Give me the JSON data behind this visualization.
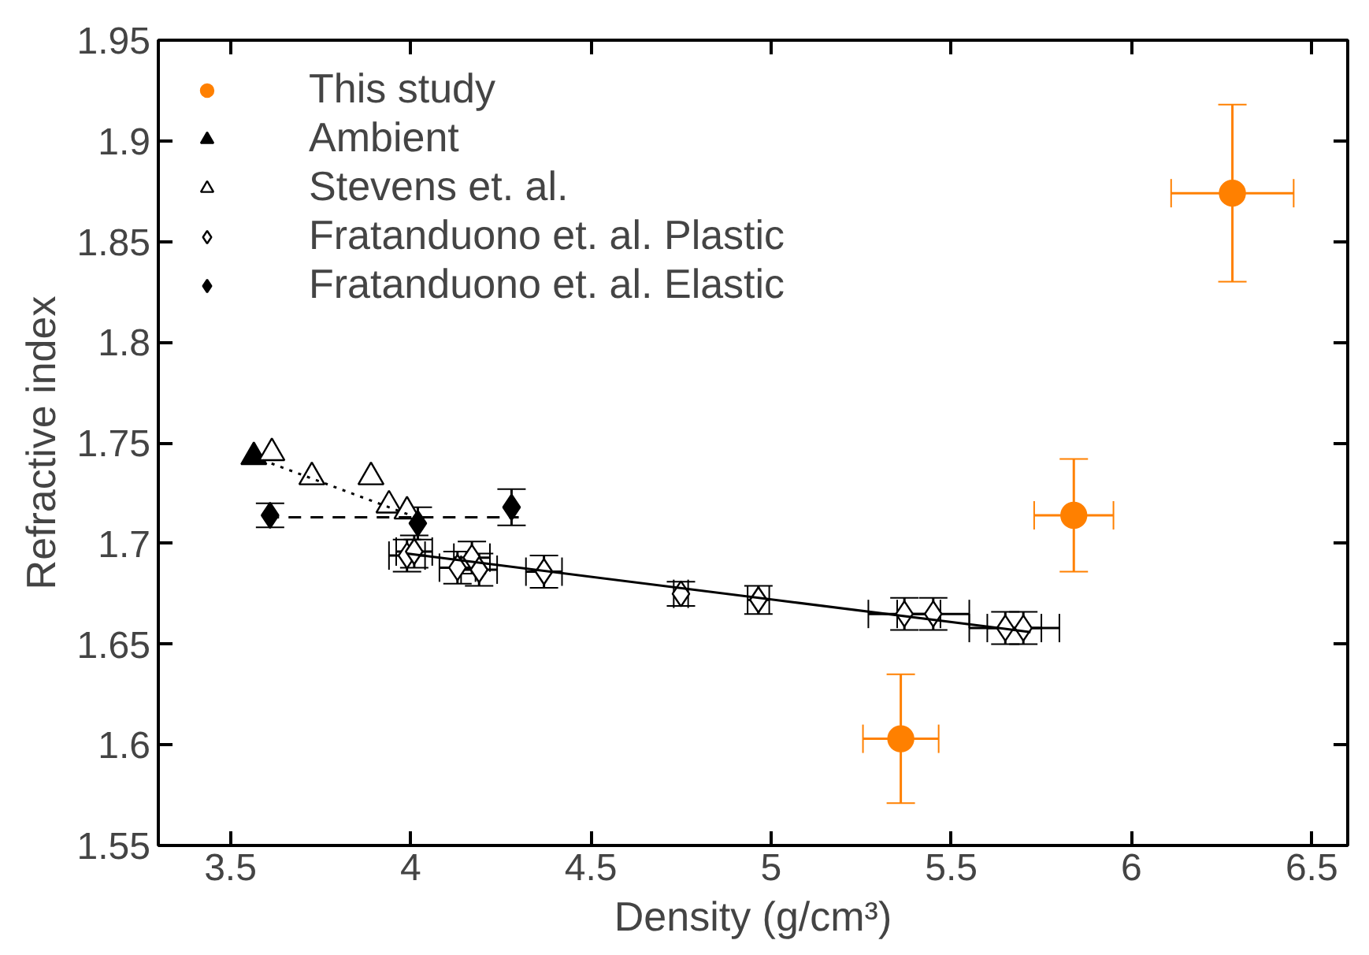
{
  "chart_data": {
    "type": "scatter",
    "xlabel": "Density (g/cm³)",
    "ylabel": "Refractive index",
    "xlim": [
      3.3,
      6.6
    ],
    "ylim": [
      1.55,
      1.95
    ],
    "xticks": [
      3.5,
      4,
      4.5,
      5,
      5.5,
      6,
      6.5
    ],
    "yticks": [
      1.55,
      1.6,
      1.65,
      1.7,
      1.75,
      1.8,
      1.85,
      1.9,
      1.95
    ],
    "grid": false,
    "legend": "top left",
    "series": [
      {
        "name": "This study",
        "color": "#ff8000",
        "marker": "circle",
        "x": [
          5.36,
          5.84,
          6.28
        ],
        "values": [
          1.603,
          1.714,
          1.874
        ],
        "errors": [
          0.032,
          0.028,
          0.044
        ],
        "xerrors": [
          0.105,
          0.11,
          0.17
        ]
      },
      {
        "name": "Ambient",
        "color": "#000000",
        "marker": "triangle",
        "x": [
          3.565
        ],
        "values": [
          1.743
        ]
      },
      {
        "name": "Stevens et. al.",
        "color": "#000000",
        "marker": "triangle_open",
        "x": [
          3.615,
          3.726,
          3.89,
          3.94,
          3.99
        ],
        "values": [
          1.745,
          1.733,
          1.733,
          1.719,
          1.716
        ]
      },
      {
        "name": "Fratanduono et. al. Plastic",
        "color": "#000000",
        "marker": "diamond_open",
        "x": [
          3.99,
          4.01,
          4.13,
          4.17,
          4.19,
          4.37,
          4.75,
          4.965,
          5.37,
          5.45,
          5.65,
          5.7
        ],
        "values": [
          1.694,
          1.696,
          1.688,
          1.693,
          1.687,
          1.686,
          1.675,
          1.672,
          1.665,
          1.665,
          1.658,
          1.658
        ],
        "errors": [
          0.008,
          0.008,
          0.008,
          0.008,
          0.008,
          0.008,
          0.006,
          0.007,
          0.008,
          0.008,
          0.008,
          0.008
        ],
        "xerrors": [
          0.05,
          0.05,
          0.05,
          0.05,
          0.05,
          0.05,
          0.02,
          0.03,
          0.1,
          0.1,
          0.1,
          0.1
        ]
      },
      {
        "name": "Fratanduono et. al. Elastic",
        "color": "#000000",
        "marker": "diamond",
        "x": [
          3.61,
          4.02,
          4.28
        ],
        "values": [
          1.714,
          1.71,
          1.718
        ],
        "errors": [
          0.006,
          0.008,
          0.009
        ]
      },
      {
        "type": "line",
        "color": "#000000",
        "line_style": "dotted",
        "x": [
          3.565,
          4.03
        ],
        "values": [
          1.743,
          1.712
        ]
      },
      {
        "type": "line",
        "color": "#000000",
        "line_style": "dashed",
        "x": [
          3.6,
          4.3
        ],
        "values": [
          1.713,
          1.713
        ]
      },
      {
        "type": "line",
        "color": "#000000",
        "line_style": "solid",
        "x": [
          3.99,
          5.72
        ],
        "values": [
          1.695,
          1.656
        ]
      }
    ]
  }
}
